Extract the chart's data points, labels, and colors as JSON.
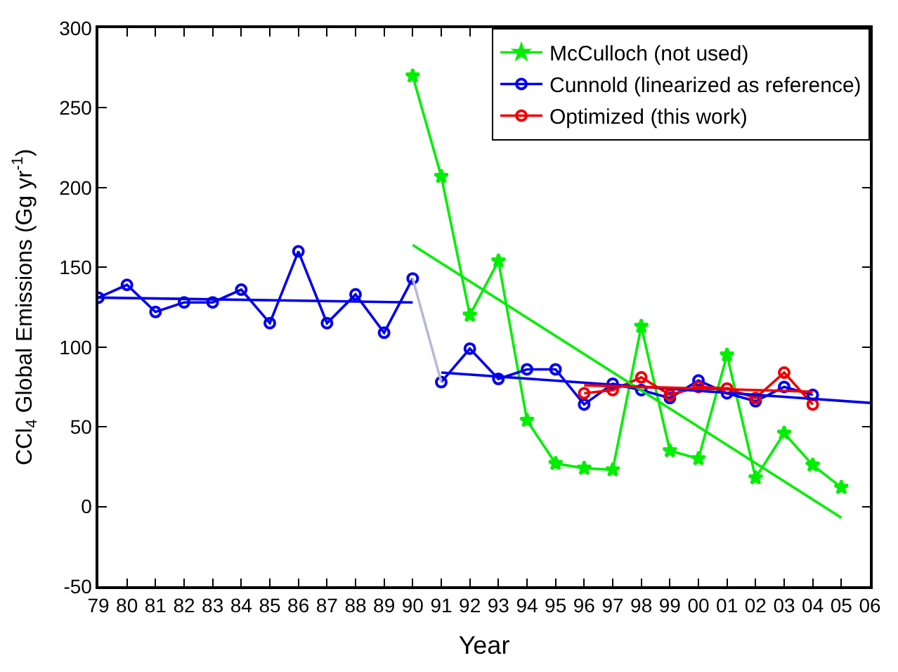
{
  "chart_data": {
    "type": "line",
    "xlabel": "Year",
    "ylabel": "CCl$_{4}$ Global Emissions (Gg yr$^{-1}$)",
    "xlim": [
      1979,
      2006
    ],
    "xticks": [
      {
        "value": 1979,
        "label": "79"
      },
      {
        "value": 1980,
        "label": "80"
      },
      {
        "value": 1981,
        "label": "81"
      },
      {
        "value": 1982,
        "label": "82"
      },
      {
        "value": 1983,
        "label": "83"
      },
      {
        "value": 1984,
        "label": "84"
      },
      {
        "value": 1985,
        "label": "85"
      },
      {
        "value": 1986,
        "label": "86"
      },
      {
        "value": 1987,
        "label": "87"
      },
      {
        "value": 1988,
        "label": "88"
      },
      {
        "value": 1989,
        "label": "89"
      },
      {
        "value": 1990,
        "label": "90"
      },
      {
        "value": 1991,
        "label": "91"
      },
      {
        "value": 1992,
        "label": "92"
      },
      {
        "value": 1993,
        "label": "93"
      },
      {
        "value": 1994,
        "label": "94"
      },
      {
        "value": 1995,
        "label": "95"
      },
      {
        "value": 1996,
        "label": "96"
      },
      {
        "value": 1997,
        "label": "97"
      },
      {
        "value": 1998,
        "label": "98"
      },
      {
        "value": 1999,
        "label": "99"
      },
      {
        "value": 2000,
        "label": "00"
      },
      {
        "value": 2001,
        "label": "01"
      },
      {
        "value": 2002,
        "label": "02"
      },
      {
        "value": 2003,
        "label": "03"
      },
      {
        "value": 2004,
        "label": "04"
      },
      {
        "value": 2005,
        "label": "05"
      },
      {
        "value": 2006,
        "label": "06"
      }
    ],
    "ylim": [
      -50,
      300
    ],
    "yticks": [
      -50,
      0,
      50,
      100,
      150,
      200,
      250,
      300
    ],
    "grid": false,
    "legend": "top right",
    "series": [
      {
        "name": "McCulloch (not used)",
        "color": "#00ee00",
        "marker": "star",
        "x": [
          1990,
          1991,
          1992,
          1993,
          1994,
          1995,
          1996,
          1997,
          1998,
          1999,
          2000,
          2001,
          2002,
          2003,
          2004,
          2005
        ],
        "values": [
          270,
          207,
          120,
          154,
          54,
          27,
          24,
          23,
          113,
          35,
          30,
          95,
          18,
          46,
          26,
          12
        ]
      },
      {
        "name": "Cunnold (linearized as reference)",
        "color": "#0000ee",
        "marker": "circle",
        "x": [
          1979,
          1980,
          1981,
          1982,
          1983,
          1984,
          1985,
          1986,
          1987,
          1988,
          1989,
          1990
        ],
        "values": [
          131,
          139,
          122,
          128,
          128,
          136,
          115,
          160,
          115,
          133,
          109,
          143
        ]
      },
      {
        "color": "#0000ee",
        "marker": "circle",
        "x": [
          1991,
          1992,
          1993,
          1994,
          1995,
          1996,
          1997,
          1998,
          1999,
          2000,
          2001,
          2002,
          2003,
          2004
        ],
        "values": [
          78,
          99,
          80,
          86,
          86,
          64,
          77,
          73,
          68,
          79,
          71,
          66,
          75,
          70
        ]
      },
      {
        "color": "#b8b8d8",
        "marker": "none",
        "x": [
          1990,
          1991
        ],
        "values": [
          143,
          78
        ]
      },
      {
        "name": "Optimized (this work)",
        "color": "#ee0000",
        "marker": "circle",
        "x": [
          1996,
          1997,
          1998,
          1999,
          2000,
          2001,
          2002,
          2003,
          2004
        ],
        "values": [
          71,
          73,
          81,
          70,
          75,
          74,
          68,
          84,
          64
        ]
      },
      {
        "color": "#0000ee",
        "marker": "none",
        "x": [
          1979,
          1990
        ],
        "values": [
          131,
          128
        ]
      },
      {
        "color": "#0000ee",
        "marker": "none",
        "x": [
          1991,
          2006
        ],
        "values": [
          84,
          65
        ]
      },
      {
        "color": "#00ee00",
        "marker": "none",
        "x": [
          1990,
          2005
        ],
        "values": [
          164,
          -7
        ]
      },
      {
        "color": "#ee0000",
        "marker": "none",
        "x": [
          1996,
          2004
        ],
        "values": [
          76,
          72
        ]
      }
    ]
  }
}
